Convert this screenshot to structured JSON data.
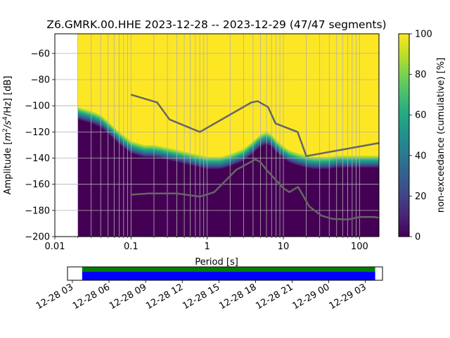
{
  "chart_data": [
    {
      "type": "heatmap",
      "title": "Z6.GMRK.00.HHE   2023-12-28 -- 2023-12-29  (47/47 segments)",
      "xlabel": "Period [s]",
      "ylabel_prefix": "Amplitude [",
      "ylabel_unit_m": "m",
      "ylabel_unit_exp1": "2",
      "ylabel_unit_mid": "/s",
      "ylabel_unit_exp2": "4",
      "ylabel_unit_end": "/Hz] [dB]",
      "x_scale": "log",
      "xlim": [
        0.01,
        180
      ],
      "ylim": [
        -200,
        -45
      ],
      "x_tick_values": [
        0.01,
        0.1,
        1,
        10,
        100
      ],
      "x_ticks": [
        "0.01",
        "0.1",
        "1",
        "10",
        "100"
      ],
      "y_tick_values": [
        -200,
        -180,
        -160,
        -140,
        -120,
        -100,
        -80,
        -60
      ],
      "y_ticks": [
        "−200",
        "−180",
        "−160",
        "−140",
        "−120",
        "−100",
        "−80",
        "−60"
      ],
      "grid": true,
      "colormap": "viridis",
      "data_period_min": 0.02,
      "median_curve": {
        "period": [
          0.02,
          0.03,
          0.04,
          0.05,
          0.07,
          0.1,
          0.15,
          0.2,
          0.3,
          0.5,
          0.7,
          1,
          1.5,
          2,
          3,
          4,
          5,
          6,
          7,
          8,
          10,
          12,
          15,
          20,
          25,
          30,
          40,
          50,
          70,
          100,
          150,
          180
        ],
        "db": [
          -108,
          -111,
          -114,
          -119,
          -127,
          -134,
          -137,
          -137,
          -139,
          -142,
          -144,
          -146,
          -146,
          -144,
          -140,
          -134,
          -129,
          -127,
          -129,
          -133,
          -138,
          -141,
          -143,
          -145,
          -146,
          -146,
          -146,
          -145,
          -145,
          -145,
          -145,
          -145
        ]
      },
      "low_noise_model": {
        "period": [
          0.1,
          0.17,
          0.4,
          0.8,
          1.24,
          2.4,
          4.3,
          5,
          6,
          10,
          12,
          15.6,
          21.9,
          31.6,
          45,
          70,
          101,
          154,
          180
        ],
        "db": [
          -168,
          -167,
          -167,
          -169.5,
          -166,
          -149,
          -141,
          -143,
          -149,
          -163,
          -166,
          -162,
          -177,
          -184,
          -186.5,
          -187,
          -185,
          -185,
          -185.5
        ]
      },
      "high_noise_model": {
        "period": [
          0.1,
          0.22,
          0.32,
          0.8,
          3.8,
          4.6,
          6.3,
          7.9,
          15.4,
          20,
          180
        ],
        "db": [
          -91.5,
          -97.4,
          -110.5,
          -120,
          -97.5,
          -96.5,
          -101,
          -113.5,
          -120,
          -138.5,
          -128.5
        ]
      }
    },
    {
      "type": "colorbar",
      "label": "non-exceedance (cumulative) [%]",
      "range": [
        0,
        100
      ],
      "tick_values": [
        0,
        20,
        40,
        60,
        80,
        100
      ],
      "ticks": [
        "0",
        "20",
        "40",
        "60",
        "80",
        "100"
      ],
      "colormap": "viridis"
    },
    {
      "type": "timeline",
      "tick_labels": [
        "12-28 03",
        "12-28 06",
        "12-28 09",
        "12-28 12",
        "12-28 15",
        "12-28 18",
        "12-28 21",
        "12-29 00",
        "12-29 03"
      ],
      "tick_hours": [
        3,
        6,
        9,
        12,
        15,
        18,
        21,
        24,
        27
      ],
      "xlim_hours": [
        2.6,
        28.4
      ],
      "coverage_hours": [
        3.8,
        27.8
      ],
      "colors": {
        "data": "#0000ff",
        "gap_free": "#008000",
        "empty": "#ffffff"
      }
    }
  ]
}
